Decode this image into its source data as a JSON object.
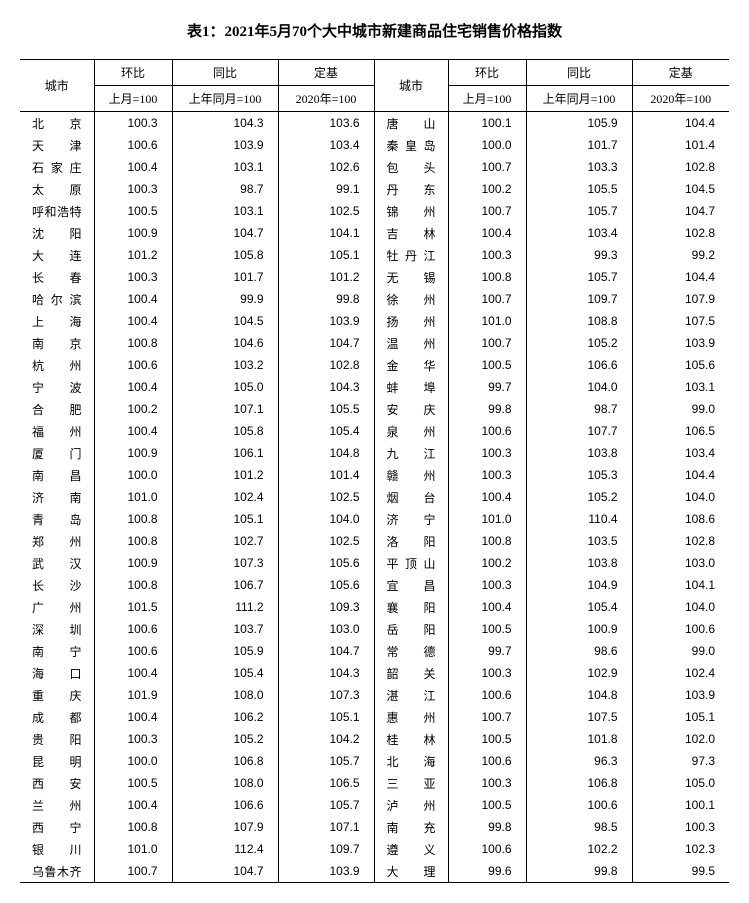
{
  "title": "表1：2021年5月70个大中城市新建商品住宅销售价格指数",
  "header": {
    "city": "城市",
    "mom": "环比",
    "yoy": "同比",
    "base": "定基",
    "mom_sub": "上月=100",
    "yoy_sub": "上年同月=100",
    "base_sub": "2020年=100"
  },
  "leftRows": [
    {
      "c": "北　　京",
      "m": "100.3",
      "y": "104.3",
      "b": "103.6"
    },
    {
      "c": "天　　津",
      "m": "100.6",
      "y": "103.9",
      "b": "103.4"
    },
    {
      "c": "石 家 庄",
      "m": "100.4",
      "y": "103.1",
      "b": "102.6"
    },
    {
      "c": "太　　原",
      "m": "100.3",
      "y": "98.7",
      "b": "99.1"
    },
    {
      "c": "呼和浩特",
      "m": "100.5",
      "y": "103.1",
      "b": "102.5"
    },
    {
      "c": "沈　　阳",
      "m": "100.9",
      "y": "104.7",
      "b": "104.1"
    },
    {
      "c": "大　　连",
      "m": "101.2",
      "y": "105.8",
      "b": "105.1"
    },
    {
      "c": "长　　春",
      "m": "100.3",
      "y": "101.7",
      "b": "101.2"
    },
    {
      "c": "哈 尔 滨",
      "m": "100.4",
      "y": "99.9",
      "b": "99.8"
    },
    {
      "c": "上　　海",
      "m": "100.4",
      "y": "104.5",
      "b": "103.9"
    },
    {
      "c": "南　　京",
      "m": "100.8",
      "y": "104.6",
      "b": "104.7"
    },
    {
      "c": "杭　　州",
      "m": "100.6",
      "y": "103.2",
      "b": "102.8"
    },
    {
      "c": "宁　　波",
      "m": "100.4",
      "y": "105.0",
      "b": "104.3"
    },
    {
      "c": "合　　肥",
      "m": "100.2",
      "y": "107.1",
      "b": "105.5"
    },
    {
      "c": "福　　州",
      "m": "100.4",
      "y": "105.8",
      "b": "105.4"
    },
    {
      "c": "厦　　门",
      "m": "100.9",
      "y": "106.1",
      "b": "104.8"
    },
    {
      "c": "南　　昌",
      "m": "100.0",
      "y": "101.2",
      "b": "101.4"
    },
    {
      "c": "济　　南",
      "m": "101.0",
      "y": "102.4",
      "b": "102.5"
    },
    {
      "c": "青　　岛",
      "m": "100.8",
      "y": "105.1",
      "b": "104.0"
    },
    {
      "c": "郑　　州",
      "m": "100.8",
      "y": "102.7",
      "b": "102.5"
    },
    {
      "c": "武　　汉",
      "m": "100.9",
      "y": "107.3",
      "b": "105.6"
    },
    {
      "c": "长　　沙",
      "m": "100.8",
      "y": "106.7",
      "b": "105.6"
    },
    {
      "c": "广　　州",
      "m": "101.5",
      "y": "111.2",
      "b": "109.3"
    },
    {
      "c": "深　　圳",
      "m": "100.6",
      "y": "103.7",
      "b": "103.0"
    },
    {
      "c": "南　　宁",
      "m": "100.6",
      "y": "105.9",
      "b": "104.7"
    },
    {
      "c": "海　　口",
      "m": "100.4",
      "y": "105.4",
      "b": "104.3"
    },
    {
      "c": "重　　庆",
      "m": "101.9",
      "y": "108.0",
      "b": "107.3"
    },
    {
      "c": "成　　都",
      "m": "100.4",
      "y": "106.2",
      "b": "105.1"
    },
    {
      "c": "贵　　阳",
      "m": "100.3",
      "y": "105.2",
      "b": "104.2"
    },
    {
      "c": "昆　　明",
      "m": "100.0",
      "y": "106.8",
      "b": "105.7"
    },
    {
      "c": "西　　安",
      "m": "100.5",
      "y": "108.0",
      "b": "106.5"
    },
    {
      "c": "兰　　州",
      "m": "100.4",
      "y": "106.6",
      "b": "105.7"
    },
    {
      "c": "西　　宁",
      "m": "100.8",
      "y": "107.9",
      "b": "107.1"
    },
    {
      "c": "银　　川",
      "m": "101.0",
      "y": "112.4",
      "b": "109.7"
    },
    {
      "c": "乌鲁木齐",
      "m": "100.7",
      "y": "104.7",
      "b": "103.9"
    }
  ],
  "rightRows": [
    {
      "c": "唐　　山",
      "m": "100.1",
      "y": "105.9",
      "b": "104.4"
    },
    {
      "c": "秦 皇 岛",
      "m": "100.0",
      "y": "101.7",
      "b": "101.4"
    },
    {
      "c": "包　　头",
      "m": "100.7",
      "y": "103.3",
      "b": "102.8"
    },
    {
      "c": "丹　　东",
      "m": "100.2",
      "y": "105.5",
      "b": "104.5"
    },
    {
      "c": "锦　　州",
      "m": "100.7",
      "y": "105.7",
      "b": "104.7"
    },
    {
      "c": "吉　　林",
      "m": "100.4",
      "y": "103.4",
      "b": "102.8"
    },
    {
      "c": "牡 丹 江",
      "m": "100.3",
      "y": "99.3",
      "b": "99.2"
    },
    {
      "c": "无　　锡",
      "m": "100.8",
      "y": "105.7",
      "b": "104.4"
    },
    {
      "c": "徐　　州",
      "m": "100.7",
      "y": "109.7",
      "b": "107.9"
    },
    {
      "c": "扬　　州",
      "m": "101.0",
      "y": "108.8",
      "b": "107.5"
    },
    {
      "c": "温　　州",
      "m": "100.7",
      "y": "105.2",
      "b": "103.9"
    },
    {
      "c": "金　　华",
      "m": "100.5",
      "y": "106.6",
      "b": "105.6"
    },
    {
      "c": "蚌　　埠",
      "m": "99.7",
      "y": "104.0",
      "b": "103.1"
    },
    {
      "c": "安　　庆",
      "m": "99.8",
      "y": "98.7",
      "b": "99.0"
    },
    {
      "c": "泉　　州",
      "m": "100.6",
      "y": "107.7",
      "b": "106.5"
    },
    {
      "c": "九　　江",
      "m": "100.3",
      "y": "103.8",
      "b": "103.4"
    },
    {
      "c": "赣　　州",
      "m": "100.3",
      "y": "105.3",
      "b": "104.4"
    },
    {
      "c": "烟　　台",
      "m": "100.4",
      "y": "105.2",
      "b": "104.0"
    },
    {
      "c": "济　　宁",
      "m": "101.0",
      "y": "110.4",
      "b": "108.6"
    },
    {
      "c": "洛　　阳",
      "m": "100.8",
      "y": "103.5",
      "b": "102.8"
    },
    {
      "c": "平 顶 山",
      "m": "100.2",
      "y": "103.8",
      "b": "103.0"
    },
    {
      "c": "宜　　昌",
      "m": "100.3",
      "y": "104.9",
      "b": "104.1"
    },
    {
      "c": "襄　　阳",
      "m": "100.4",
      "y": "105.4",
      "b": "104.0"
    },
    {
      "c": "岳　　阳",
      "m": "100.5",
      "y": "100.9",
      "b": "100.6"
    },
    {
      "c": "常　　德",
      "m": "99.7",
      "y": "98.6",
      "b": "99.0"
    },
    {
      "c": "韶　　关",
      "m": "100.3",
      "y": "102.9",
      "b": "102.4"
    },
    {
      "c": "湛　　江",
      "m": "100.6",
      "y": "104.8",
      "b": "103.9"
    },
    {
      "c": "惠　　州",
      "m": "100.7",
      "y": "107.5",
      "b": "105.1"
    },
    {
      "c": "桂　　林",
      "m": "100.5",
      "y": "101.8",
      "b": "102.0"
    },
    {
      "c": "北　　海",
      "m": "100.6",
      "y": "96.3",
      "b": "97.3"
    },
    {
      "c": "三　　亚",
      "m": "100.3",
      "y": "106.8",
      "b": "105.0"
    },
    {
      "c": "泸　　州",
      "m": "100.5",
      "y": "100.6",
      "b": "100.1"
    },
    {
      "c": "南　　充",
      "m": "99.8",
      "y": "98.5",
      "b": "100.3"
    },
    {
      "c": "遵　　义",
      "m": "100.6",
      "y": "102.2",
      "b": "102.3"
    },
    {
      "c": "大　　理",
      "m": "99.6",
      "y": "99.8",
      "b": "99.5"
    }
  ]
}
